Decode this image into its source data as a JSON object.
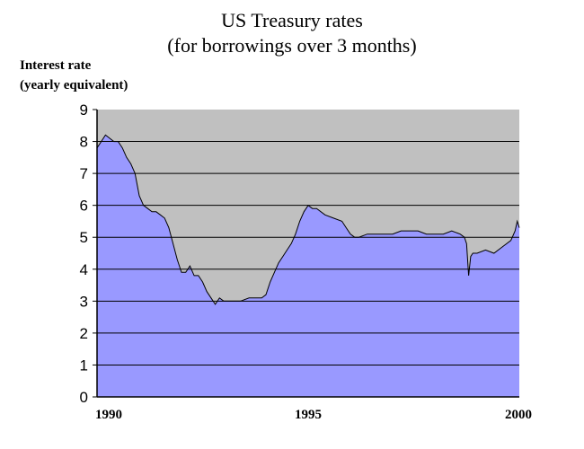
{
  "chart_data": {
    "type": "area",
    "title_lines": [
      "US Treasury rates",
      "(for borrowings over 3 months)"
    ],
    "ylabel_lines": [
      "Interest rate",
      "(yearly equivalent)"
    ],
    "xlabel": "",
    "xlim": [
      1990,
      2000
    ],
    "ylim": [
      0,
      9
    ],
    "yticks": [
      0,
      1,
      2,
      3,
      4,
      5,
      6,
      7,
      8,
      9
    ],
    "xticks": [
      1990,
      1995,
      2000
    ],
    "grid": true,
    "legend": "none",
    "colors": {
      "fill": "#9999ff",
      "plot_background": "#c0c0c0",
      "line": "#000000",
      "grid": "#000000"
    },
    "series": [
      {
        "x": [
          1990.0,
          1990.1,
          1990.2,
          1990.3,
          1990.4,
          1990.5,
          1990.6,
          1990.7,
          1990.8,
          1990.9,
          1991.0,
          1991.1,
          1991.2,
          1991.3,
          1991.4,
          1991.5,
          1991.6,
          1991.7,
          1991.8,
          1991.9,
          1992.0,
          1992.1,
          1992.2,
          1992.3,
          1992.4,
          1992.5,
          1992.6,
          1992.7,
          1992.8,
          1992.9,
          1993.0,
          1993.2,
          1993.4,
          1993.6,
          1993.8,
          1993.9,
          1994.0,
          1994.1,
          1994.2,
          1994.3,
          1994.4,
          1994.5,
          1994.6,
          1994.7,
          1994.8,
          1994.9,
          1995.0,
          1995.1,
          1995.2,
          1995.4,
          1995.6,
          1995.8,
          1995.9,
          1996.0,
          1996.1,
          1996.2,
          1996.4,
          1996.6,
          1996.8,
          1997.0,
          1997.2,
          1997.4,
          1997.6,
          1997.8,
          1998.0,
          1998.2,
          1998.4,
          1998.6,
          1998.7,
          1998.75,
          1998.8,
          1998.85,
          1998.9,
          1999.0,
          1999.2,
          1999.4,
          1999.6,
          1999.8,
          1999.9,
          1999.95,
          2000.0
        ],
        "values": [
          7.8,
          8.0,
          8.2,
          8.1,
          8.0,
          8.0,
          7.8,
          7.5,
          7.3,
          7.0,
          6.3,
          6.0,
          5.9,
          5.8,
          5.8,
          5.7,
          5.6,
          5.3,
          4.8,
          4.3,
          3.9,
          3.9,
          4.1,
          3.8,
          3.8,
          3.6,
          3.3,
          3.1,
          2.9,
          3.1,
          3.0,
          3.0,
          3.0,
          3.1,
          3.1,
          3.1,
          3.2,
          3.6,
          3.9,
          4.2,
          4.4,
          4.6,
          4.8,
          5.1,
          5.5,
          5.8,
          6.0,
          5.9,
          5.9,
          5.7,
          5.6,
          5.5,
          5.3,
          5.1,
          5.0,
          5.0,
          5.1,
          5.1,
          5.1,
          5.1,
          5.2,
          5.2,
          5.2,
          5.1,
          5.1,
          5.1,
          5.2,
          5.1,
          5.0,
          4.8,
          3.8,
          4.4,
          4.5,
          4.5,
          4.6,
          4.5,
          4.7,
          4.9,
          5.2,
          5.5,
          5.3
        ]
      }
    ]
  }
}
